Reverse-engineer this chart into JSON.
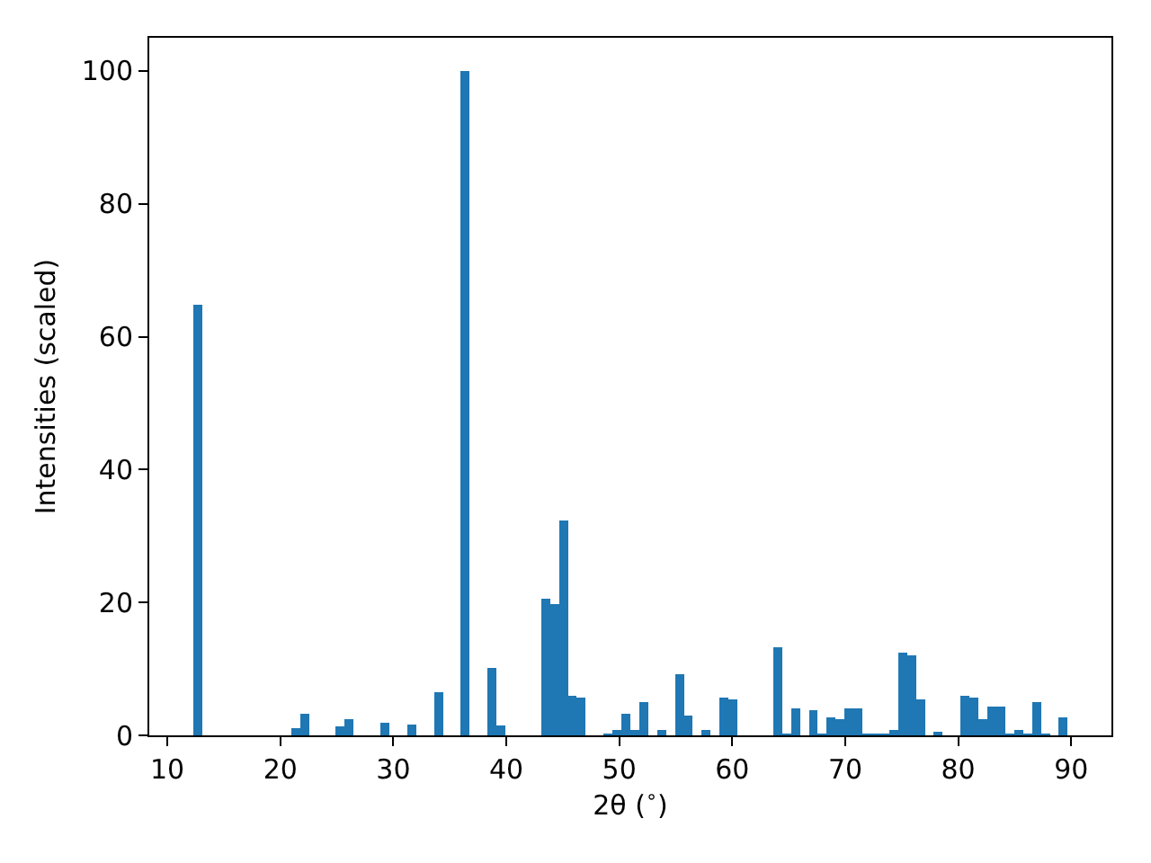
{
  "chart_data": {
    "type": "histogram",
    "xlabel": "2θ ($^{∘}$)",
    "ylabel": "Intensities (scaled)",
    "color": "#1f77b4",
    "bins": [
      12.27,
      13.06,
      13.85,
      14.64,
      15.43,
      16.22,
      17.01,
      17.8,
      18.59,
      19.38,
      20.17,
      20.96,
      21.75,
      22.54,
      23.33,
      24.12,
      24.91,
      25.7,
      26.49,
      27.28,
      28.07,
      28.86,
      29.65,
      30.44,
      31.23,
      32.02,
      32.81,
      33.6,
      34.39,
      35.18,
      35.97,
      36.76,
      37.55,
      38.34,
      39.13,
      39.92,
      40.71,
      41.5,
      42.29,
      43.08,
      43.87,
      44.66,
      45.45,
      46.24,
      47.03,
      47.82,
      48.61,
      49.4,
      50.19,
      50.98,
      51.77,
      52.56,
      53.35,
      54.14,
      54.93,
      55.72,
      56.51,
      57.3,
      58.09,
      58.88,
      59.67,
      60.46,
      61.25,
      62.04,
      62.83,
      63.62,
      64.41,
      65.2,
      65.99,
      66.78,
      67.57,
      68.36,
      69.15,
      69.94,
      70.73,
      71.52,
      72.31,
      73.1,
      73.89,
      74.68,
      75.47,
      76.26,
      77.05,
      77.84,
      78.63,
      79.42,
      80.21,
      81.0,
      81.79,
      82.58,
      83.37,
      84.16,
      84.95,
      85.74,
      86.53,
      87.32,
      88.11,
      88.9,
      89.69
    ],
    "values": [
      64.8,
      0,
      0,
      0,
      0,
      0,
      0,
      0,
      0,
      0,
      0,
      1.1,
      3.2,
      0,
      0,
      0,
      1.3,
      2.4,
      0,
      0,
      0,
      1.9,
      0,
      0,
      1.6,
      0,
      0,
      6.5,
      0,
      0,
      100,
      0,
      0,
      10.1,
      1.5,
      0,
      0,
      0,
      0,
      20.6,
      19.7,
      32.3,
      6.0,
      5.7,
      0,
      0,
      0.3,
      0.8,
      3.2,
      0.8,
      5.0,
      0,
      0.8,
      0,
      9.2,
      3.0,
      0,
      0.8,
      0,
      5.7,
      5.4,
      0,
      0,
      0,
      0,
      13.3,
      0.3,
      4.1,
      0,
      3.8,
      0.3,
      2.7,
      2.4,
      4.1,
      4.1,
      0.3,
      0.3,
      0.3,
      0.8,
      12.5,
      12.0,
      5.4,
      0,
      0.6,
      0,
      0,
      6.0,
      5.7,
      2.4,
      4.3,
      4.3,
      0.3,
      0.8,
      0.3,
      5.0,
      0.3,
      0,
      2.7
    ],
    "xlim": [
      8.4,
      93.56
    ],
    "ylim": [
      0,
      105
    ],
    "xticks": [
      10,
      20,
      30,
      40,
      50,
      60,
      70,
      80,
      90
    ],
    "yticks": [
      0,
      20,
      40,
      60,
      80,
      100
    ]
  }
}
